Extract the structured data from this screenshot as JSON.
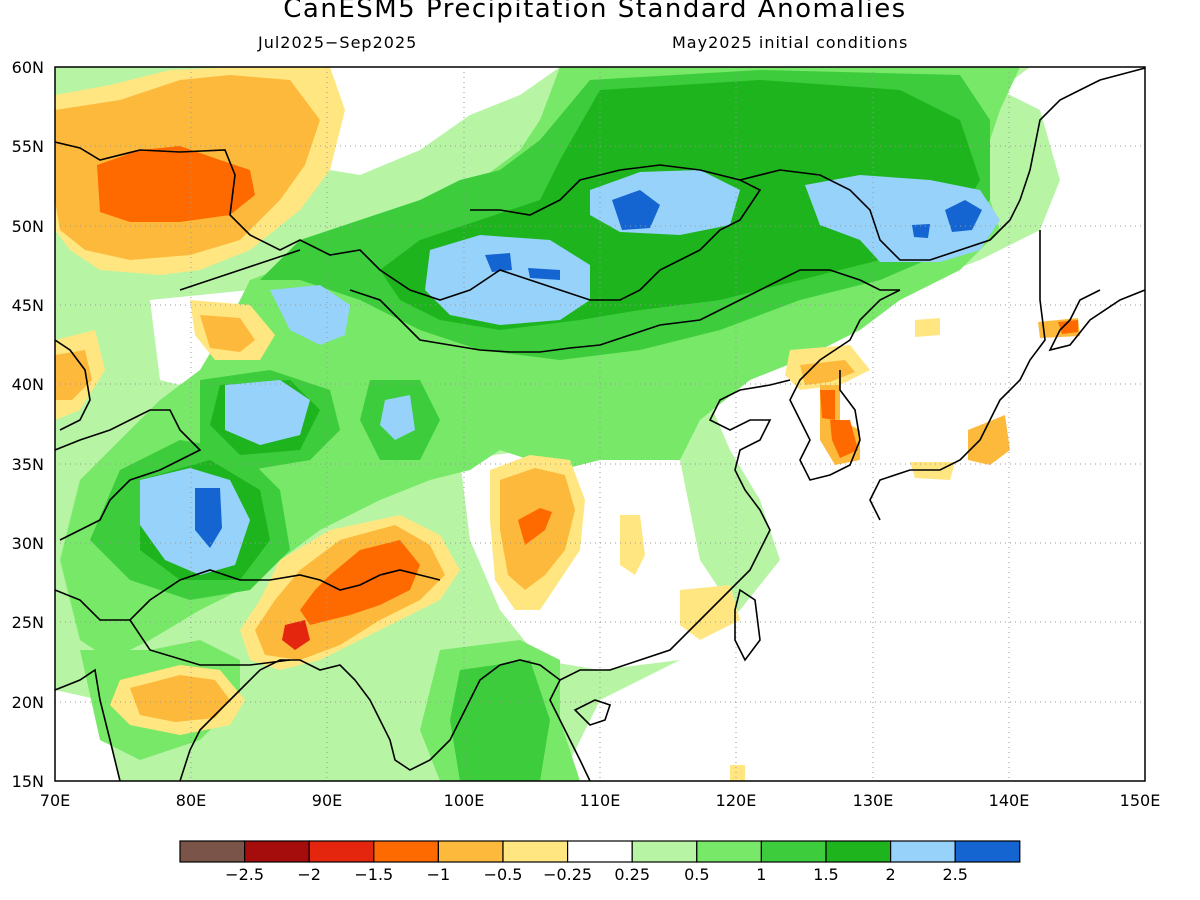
{
  "header": {
    "title": "CanESM5 Precipitation Standard Anomalies",
    "period": "Jul2025−Sep2025",
    "init": "May2025 initial conditions"
  },
  "map": {
    "lon_range": [
      70,
      150
    ],
    "lat_range": [
      15,
      60
    ],
    "lon_labels": [
      "70E",
      "80E",
      "90E",
      "100E",
      "110E",
      "120E",
      "130E",
      "140E",
      "150E"
    ],
    "lat_labels": [
      "15N",
      "20N",
      "25N",
      "30N",
      "35N",
      "40N",
      "45N",
      "50N",
      "55N",
      "60N"
    ],
    "grid": true
  },
  "colorbar": {
    "colors": [
      "#7a5448",
      "#a50c0c",
      "#e5260f",
      "#ff6a00",
      "#fdb93c",
      "#ffe680",
      "#ffffff",
      "#b7f5a5",
      "#78e868",
      "#3ccc3c",
      "#1eb41e",
      "#96d2fa",
      "#1464d2"
    ],
    "labels": [
      "−2.5",
      "−2",
      "−1.5",
      "−1",
      "−0.5",
      "−0.25",
      "0.25",
      "0.5",
      "1",
      "1.5",
      "2",
      "2.5"
    ]
  }
}
